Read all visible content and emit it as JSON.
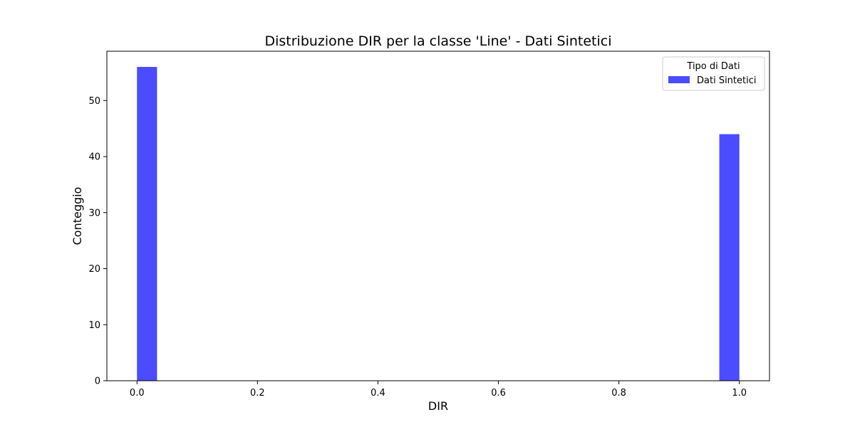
{
  "chart_data": {
    "type": "bar",
    "title": "Distribuzione DIR per la classe 'Line' - Dati Sintetici",
    "xlabel": "DIR",
    "ylabel": "Conteggio",
    "xlim": [
      -0.05,
      1.05
    ],
    "ylim": [
      0,
      58.8
    ],
    "xticks": [
      0.0,
      0.2,
      0.4,
      0.6,
      0.8,
      1.0
    ],
    "xtick_labels": [
      "0.0",
      "0.2",
      "0.4",
      "0.6",
      "0.8",
      "1.0"
    ],
    "yticks": [
      0,
      10,
      20,
      30,
      40,
      50
    ],
    "ytick_labels": [
      "0",
      "10",
      "20",
      "30",
      "40",
      "50"
    ],
    "grid": false,
    "legend": {
      "title": "Tipo di Dati",
      "placement": "top-right"
    },
    "series": [
      {
        "name": "Dati Sintetici",
        "color": "#4b4bff",
        "bins": [
          {
            "x_start": 0.0,
            "x_end": 0.0333,
            "value": 56
          },
          {
            "x_start": 0.9667,
            "x_end": 1.0,
            "value": 44
          }
        ]
      }
    ]
  }
}
